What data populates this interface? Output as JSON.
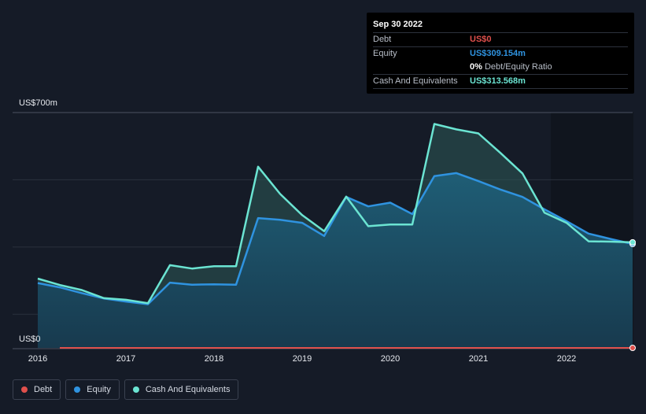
{
  "chart_data": {
    "type": "area",
    "title": "",
    "y_axis": {
      "top_label": "US$700m",
      "bottom_label": "US$0",
      "ylim": [
        0,
        700
      ],
      "unit": "US$m"
    },
    "x_axis": {
      "ticks": [
        "2016",
        "2017",
        "2018",
        "2019",
        "2020",
        "2021",
        "2022"
      ],
      "xlim": [
        2016.0,
        2022.75
      ]
    },
    "series": [
      {
        "name": "Debt",
        "color": "#e0504c",
        "x": [
          2016.25,
          2016.5,
          2017.0,
          2017.5,
          2018.0,
          2018.5,
          2019.0,
          2019.5,
          2020.0,
          2020.5,
          2021.0,
          2021.5,
          2022.0,
          2022.75
        ],
        "values": [
          0,
          0,
          0,
          0,
          0,
          0,
          0,
          0,
          0,
          0,
          0,
          0,
          0,
          0
        ]
      },
      {
        "name": "Equity",
        "color": "#2f93e0",
        "x": [
          2016.0,
          2016.25,
          2016.5,
          2016.75,
          2017.0,
          2017.25,
          2017.5,
          2017.75,
          2018.0,
          2018.25,
          2018.5,
          2018.75,
          2019.0,
          2019.25,
          2019.5,
          2019.75,
          2020.0,
          2020.25,
          2020.5,
          2020.75,
          2021.0,
          2021.25,
          2021.5,
          2021.75,
          2022.0,
          2022.25,
          2022.5,
          2022.75
        ],
        "values": [
          193,
          180,
          163,
          147,
          138,
          130,
          194,
          188,
          189,
          188,
          386,
          381,
          372,
          333,
          449,
          421,
          432,
          398,
          511,
          520,
          496,
          471,
          449,
          412,
          377,
          340,
          324,
          309
        ]
      },
      {
        "name": "Cash And Equivalents",
        "color": "#6be4d2",
        "x": [
          2016.0,
          2016.25,
          2016.5,
          2016.75,
          2017.0,
          2017.25,
          2017.5,
          2017.75,
          2018.0,
          2018.25,
          2018.5,
          2018.75,
          2019.0,
          2019.25,
          2019.5,
          2019.75,
          2020.0,
          2020.25,
          2020.5,
          2020.75,
          2021.0,
          2021.25,
          2021.5,
          2021.75,
          2022.0,
          2022.25,
          2022.5,
          2022.75
        ],
        "values": [
          206,
          187,
          172,
          148,
          143,
          133,
          246,
          236,
          243,
          243,
          539,
          458,
          395,
          347,
          450,
          362,
          367,
          367,
          666,
          650,
          638,
          580,
          519,
          402,
          372,
          317,
          316,
          314
        ]
      }
    ],
    "tooltip": {
      "date": "Sep 30 2022",
      "rows": [
        {
          "label": "Debt",
          "value": "US$0",
          "color": "#e0504c"
        },
        {
          "label": "Equity",
          "value": "US$309.154m",
          "color": "#2f93e0"
        },
        {
          "ratio_value": "0%",
          "ratio_label": "Debt/Equity Ratio"
        },
        {
          "label": "Cash And Equivalents",
          "value": "US$313.568m",
          "color": "#6be4d2"
        }
      ]
    }
  },
  "legend": {
    "items": [
      {
        "label": "Debt",
        "color": "#e0504c"
      },
      {
        "label": "Equity",
        "color": "#2f93e0"
      },
      {
        "label": "Cash And Equivalents",
        "color": "#6be4d2"
      }
    ]
  }
}
